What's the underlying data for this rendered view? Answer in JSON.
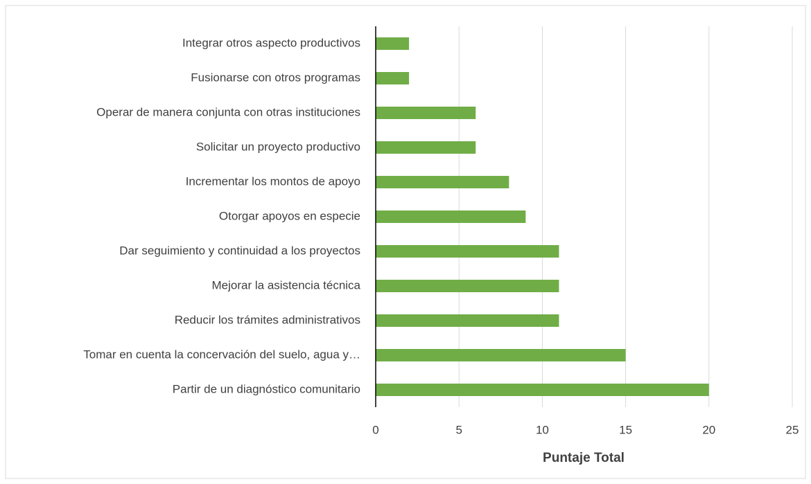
{
  "chart_data": {
    "type": "hbar",
    "categories": [
      "Integrar otros aspecto productivos",
      "Fusionarse con otros programas",
      "Operar de manera conjunta con otras instituciones",
      "Solicitar un proyecto productivo",
      "Incrementar los montos de apoyo",
      "Otorgar apoyos en especie",
      "Dar seguimiento y continuidad a los proyectos",
      "Mejorar la asistencia técnica",
      "Reducir los trámites administrativos",
      "Tomar en cuenta la concervación del suelo, agua y…",
      "Partir de un diagnóstico comunitario"
    ],
    "values": [
      2,
      2,
      6,
      6,
      8,
      9,
      11,
      11,
      11,
      15,
      20
    ],
    "color": "#70ad47",
    "x_label": "Puntaje Total",
    "xlim": [
      0,
      25
    ],
    "xticks": [
      0,
      5,
      10,
      15,
      20,
      25
    ],
    "grid": true
  }
}
